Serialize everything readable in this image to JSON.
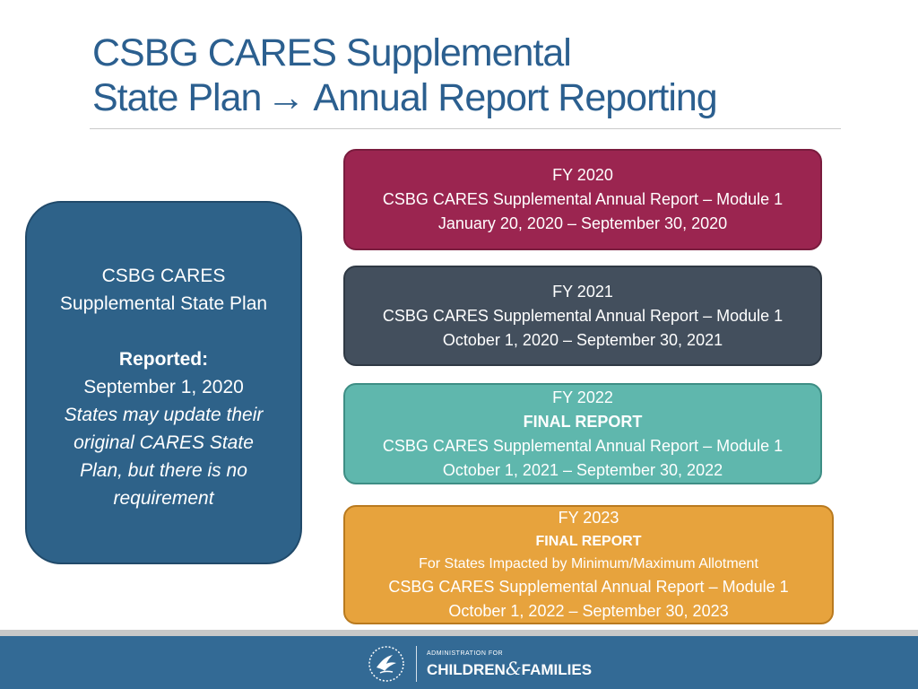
{
  "title": {
    "line1": "CSBG CARES Supplemental",
    "line2_left": "State Plan",
    "arrow": "→",
    "line2_right": "Annual Report Reporting"
  },
  "state_plan": {
    "heading_1": "CSBG CARES",
    "heading_2": "Supplemental State Plan",
    "reported_label": "Reported:",
    "reported_date": "September 1, 2020",
    "note_1": "States may update their",
    "note_2": "original CARES State",
    "note_3": "Plan, but there is no",
    "note_4": "requirement",
    "color": "#2e6289"
  },
  "reports": [
    {
      "fy": "FY 2020",
      "name": "CSBG CARES Supplemental Annual Report – Module 1",
      "period": "January 20, 2020 – September 30, 2020",
      "color": "#9b2550"
    },
    {
      "fy": "FY 2021",
      "name": "CSBG CARES Supplemental Annual Report – Module 1",
      "period": "October 1, 2020 – September 30, 2021",
      "color": "#434f5d"
    },
    {
      "fy": "FY 2022",
      "tag": "FINAL REPORT",
      "name": "CSBG CARES Supplemental Annual Report – Module 1",
      "period": "October 1, 2021 – September 30, 2022",
      "color": "#5fb7ad"
    },
    {
      "fy": "FY 2023",
      "tag": "FINAL REPORT",
      "note": "For States Impacted by Minimum/Maximum Allotment",
      "name": "CSBG CARES Supplemental Annual Report – Module 1",
      "period": "October 1, 2022 – September 30, 2023",
      "color": "#e7a33d"
    }
  ],
  "footer": {
    "logo_small": "ADMINISTRATION FOR",
    "logo_left": "CHILDREN",
    "logo_amp": "&",
    "logo_right": "FAMILIES",
    "hhs_icon": "hhs-eagle-icon",
    "color": "#336a95"
  }
}
